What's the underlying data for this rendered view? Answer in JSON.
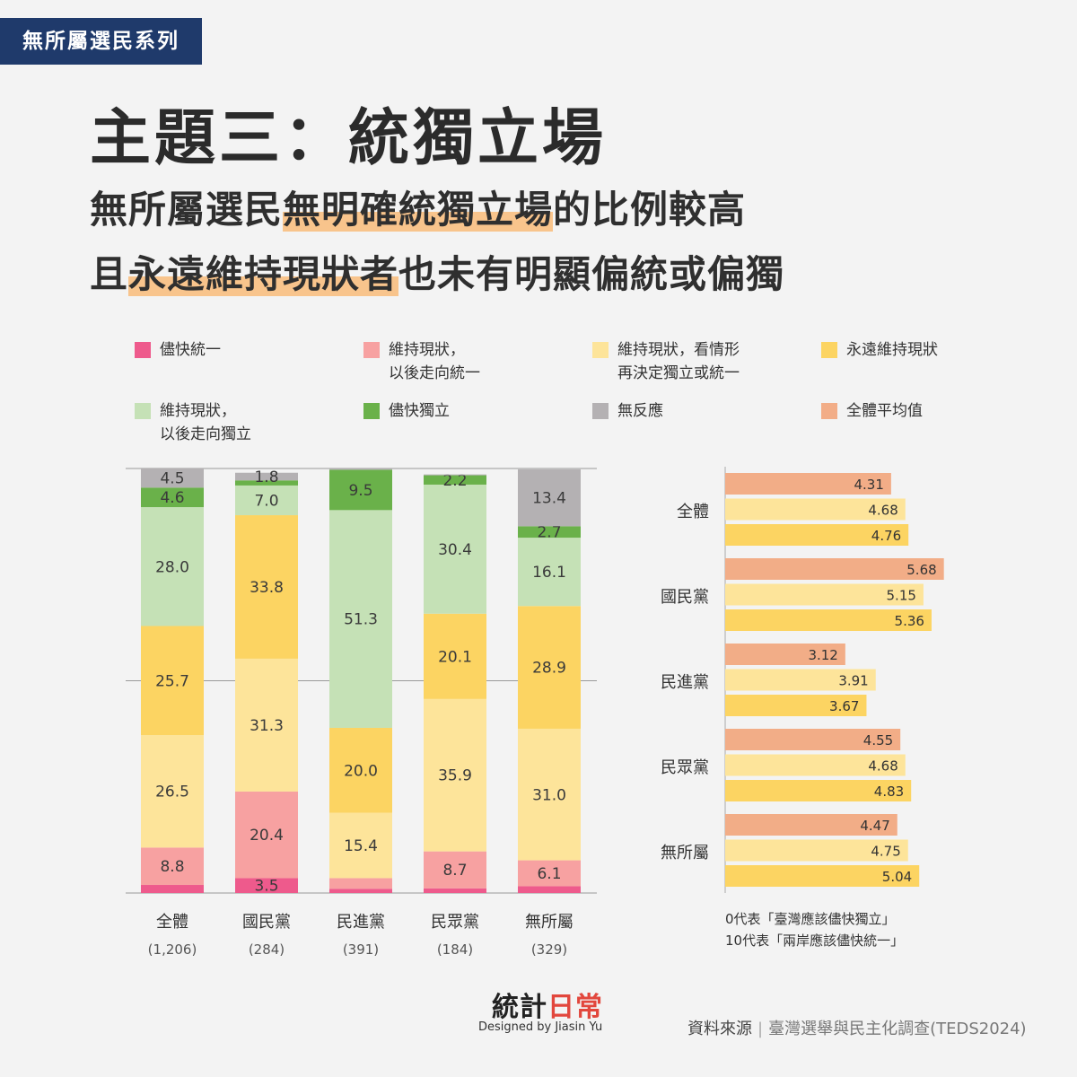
{
  "header": {
    "series_tag": "無所屬選民系列",
    "title": "主題三：統獨立場",
    "subtitle_line1": [
      "無所屬選民",
      "無明確統獨立場",
      "的比例較高"
    ],
    "subtitle_line2": [
      "且",
      "永遠維持現狀者",
      "也未有明顯偏統或偏獨"
    ]
  },
  "colors": {
    "unify_asap": "#ee5a8c",
    "sq_then_unify": "#f7a1a1",
    "sq_decide_later": "#fde49a",
    "sq_forever": "#fcd462",
    "sq_then_indep": "#c5e1b6",
    "indep_asap": "#6ab14a",
    "no_response": "#b4b1b3",
    "overall_avg": "#f2ad87"
  },
  "legend": [
    {
      "key": "unify_asap",
      "label": "儘快統一"
    },
    {
      "key": "sq_then_unify",
      "label": "維持現狀，\n以後走向統一"
    },
    {
      "key": "sq_decide_later",
      "label": "維持現狀，看情形\n再決定獨立或統一"
    },
    {
      "key": "sq_forever",
      "label": "永遠維持現狀"
    },
    {
      "key": "sq_then_indep",
      "label": "維持現狀，\n以後走向獨立"
    },
    {
      "key": "indep_asap",
      "label": "儘快獨立"
    },
    {
      "key": "no_response",
      "label": "無反應"
    },
    {
      "key": "overall_avg",
      "label": "全體平均值"
    }
  ],
  "chart_data": [
    {
      "type": "bar",
      "stacked": true,
      "unit": "%",
      "categories": [
        "全體",
        "國民黨",
        "民進黨",
        "民眾黨",
        "無所屬"
      ],
      "sample_sizes": [
        "(1,206)",
        "(284)",
        "(391)",
        "(184)",
        "(329)"
      ],
      "ylim": [
        0,
        100
      ],
      "series": [
        {
          "name": "儘快統一",
          "key": "unify_asap",
          "values": [
            1.9,
            3.5,
            1.0,
            1.1,
            1.6
          ],
          "labels": [
            "",
            "3.5",
            "",
            "",
            ""
          ]
        },
        {
          "name": "維持現狀，以後走向統一",
          "key": "sq_then_unify",
          "values": [
            8.8,
            20.4,
            2.5,
            8.7,
            6.1
          ],
          "labels": [
            "8.8",
            "20.4",
            "",
            "8.7",
            "6.1"
          ]
        },
        {
          "name": "維持現狀，看情形再決定獨立或統一",
          "key": "sq_decide_later",
          "values": [
            26.5,
            31.3,
            15.4,
            35.9,
            31.0
          ],
          "labels": [
            "26.5",
            "31.3",
            "15.4",
            "35.9",
            "31.0"
          ]
        },
        {
          "name": "永遠維持現狀",
          "key": "sq_forever",
          "values": [
            25.7,
            33.8,
            20.0,
            20.1,
            28.9
          ],
          "labels": [
            "25.7",
            "33.8",
            "20.0",
            "20.1",
            "28.9"
          ]
        },
        {
          "name": "維持現狀，以後走向獨立",
          "key": "sq_then_indep",
          "values": [
            28.0,
            7.0,
            51.3,
            30.4,
            16.1
          ],
          "labels": [
            "28.0",
            "7.0",
            "51.3",
            "30.4",
            "16.1"
          ]
        },
        {
          "name": "儘快獨立",
          "key": "indep_asap",
          "values": [
            4.6,
            1.2,
            9.5,
            2.2,
            2.7
          ],
          "labels": [
            "4.6",
            "",
            "9.5",
            "2.2",
            "2.7"
          ]
        },
        {
          "name": "無反應",
          "key": "no_response",
          "values": [
            4.5,
            1.8,
            0.3,
            0.2,
            13.4
          ],
          "labels": [
            "4.5",
            "1.8",
            "",
            "",
            "13.4"
          ]
        }
      ]
    },
    {
      "type": "bar",
      "orientation": "horizontal",
      "xlim": [
        0,
        10
      ],
      "categories": [
        "全體",
        "國民黨",
        "民進黨",
        "民眾黨",
        "無所屬"
      ],
      "series": [
        {
          "key": "overall_avg",
          "values": [
            4.31,
            5.68,
            3.12,
            4.55,
            4.47
          ]
        },
        {
          "key": "sq_decide_later",
          "values": [
            4.68,
            5.15,
            3.91,
            4.68,
            4.75
          ]
        },
        {
          "key": "sq_forever",
          "values": [
            4.76,
            5.36,
            3.67,
            4.83,
            5.04
          ]
        }
      ],
      "note_line1": "0代表「臺灣應該儘快獨立」",
      "note_line2": "10代表「兩岸應該儘快統一」"
    }
  ],
  "footer": {
    "logo_part1": "統計",
    "logo_part2": "日常",
    "designed_by": "Designed by Jiasin Yu",
    "source_label": "資料來源",
    "source_value": "臺灣選舉與民主化調查(TEDS2024)"
  }
}
